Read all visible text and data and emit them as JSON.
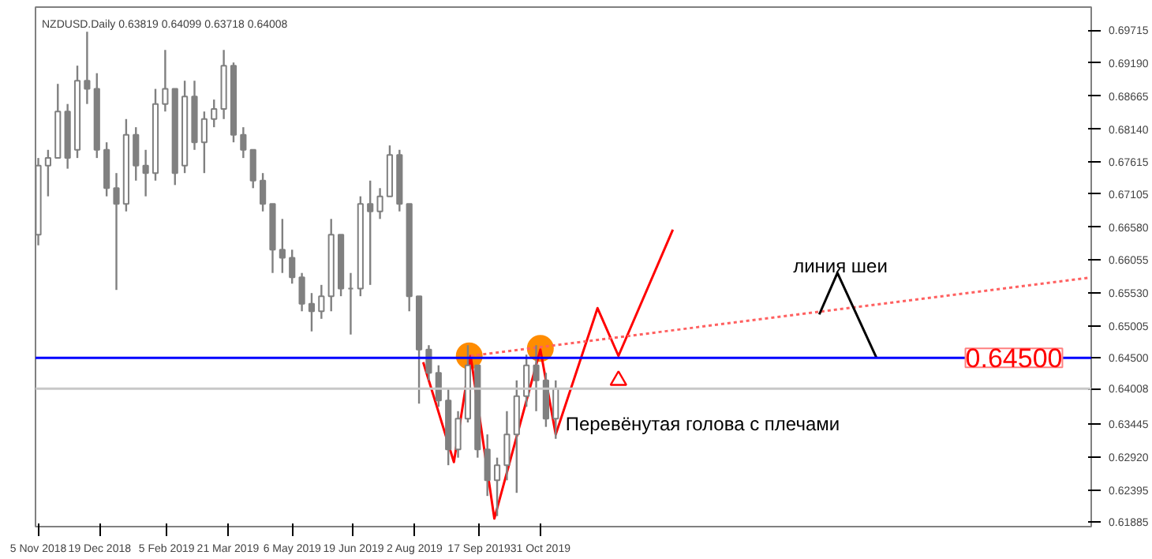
{
  "chart_data": {
    "type": "candlestick",
    "title": "NZDUSD.Daily  0.63819 0.64099 0.63718 0.64008",
    "color": "#808080",
    "x": [
      "2018-11-05",
      "2018-11-12",
      "2018-11-19",
      "2018-11-26",
      "2018-12-03",
      "2018-12-10",
      "2018-12-17",
      "2018-12-24",
      "2018-12-31",
      "2019-01-07",
      "2019-01-14",
      "2019-01-21",
      "2019-01-28",
      "2019-02-04",
      "2019-02-11",
      "2019-02-18",
      "2019-02-25",
      "2019-03-04",
      "2019-03-11",
      "2019-03-18",
      "2019-03-25",
      "2019-04-01",
      "2019-04-08",
      "2019-04-15",
      "2019-04-22",
      "2019-04-29",
      "2019-05-06",
      "2019-05-13",
      "2019-05-20",
      "2019-05-27",
      "2019-06-03",
      "2019-06-10",
      "2019-06-17",
      "2019-06-24",
      "2019-07-01",
      "2019-07-08",
      "2019-07-15",
      "2019-07-22",
      "2019-07-29",
      "2019-08-05",
      "2019-08-12",
      "2019-08-19",
      "2019-08-26",
      "2019-09-02",
      "2019-09-09",
      "2019-09-16",
      "2019-09-23",
      "2019-09-30",
      "2019-10-07",
      "2019-10-14",
      "2019-10-21",
      "2019-10-28",
      "2019-11-04",
      "2019-11-11"
    ],
    "ohlc": [
      [
        0.6646,
        0.6768,
        0.6629,
        0.6756
      ],
      [
        0.6756,
        0.6781,
        0.6707,
        0.6768
      ],
      [
        0.6768,
        0.6886,
        0.6768,
        0.6842
      ],
      [
        0.6842,
        0.6854,
        0.6751,
        0.6768
      ],
      [
        0.6781,
        0.6915,
        0.6768,
        0.6891
      ],
      [
        0.6891,
        0.6969,
        0.6854,
        0.6878
      ],
      [
        0.6878,
        0.6903,
        0.6768,
        0.6781
      ],
      [
        0.6781,
        0.6793,
        0.6707,
        0.672
      ],
      [
        0.672,
        0.6744,
        0.6558,
        0.6695
      ],
      [
        0.6695,
        0.683,
        0.6683,
        0.6805
      ],
      [
        0.6805,
        0.6817,
        0.6732,
        0.6756
      ],
      [
        0.6756,
        0.6781,
        0.6707,
        0.6744
      ],
      [
        0.6744,
        0.6878,
        0.6732,
        0.6854
      ],
      [
        0.6854,
        0.694,
        0.6842,
        0.6878
      ],
      [
        0.6878,
        0.6878,
        0.6725,
        0.6744
      ],
      [
        0.6756,
        0.6891,
        0.6744,
        0.6866
      ],
      [
        0.6866,
        0.6891,
        0.6781,
        0.6793
      ],
      [
        0.6793,
        0.6842,
        0.6744,
        0.683
      ],
      [
        0.683,
        0.6861,
        0.6817,
        0.6846
      ],
      [
        0.6846,
        0.694,
        0.683,
        0.6915
      ],
      [
        0.6915,
        0.692,
        0.6793,
        0.6805
      ],
      [
        0.6805,
        0.6817,
        0.6768,
        0.6781
      ],
      [
        0.6781,
        0.6781,
        0.672,
        0.6732
      ],
      [
        0.6732,
        0.6744,
        0.6683,
        0.6695
      ],
      [
        0.6695,
        0.6695,
        0.6585,
        0.6622
      ],
      [
        0.6622,
        0.6671,
        0.6585,
        0.6609
      ],
      [
        0.6609,
        0.6622,
        0.6568,
        0.6578
      ],
      [
        0.6578,
        0.6585,
        0.6524,
        0.6536
      ],
      [
        0.6536,
        0.6553,
        0.6492,
        0.6524
      ],
      [
        0.6524,
        0.6566,
        0.6512,
        0.6548
      ],
      [
        0.6548,
        0.6671,
        0.6524,
        0.6646
      ],
      [
        0.6646,
        0.6646,
        0.6548,
        0.656
      ],
      [
        0.656,
        0.6585,
        0.6487,
        0.656
      ],
      [
        0.656,
        0.6707,
        0.6548,
        0.6695
      ],
      [
        0.6695,
        0.6732,
        0.6566,
        0.6683
      ],
      [
        0.6683,
        0.672,
        0.6671,
        0.6707
      ],
      [
        0.6707,
        0.6788,
        0.6707,
        0.6773
      ],
      [
        0.6773,
        0.6781,
        0.6683,
        0.6695
      ],
      [
        0.6695,
        0.6695,
        0.6524,
        0.6548
      ],
      [
        0.6548,
        0.6548,
        0.6377,
        0.6463
      ],
      [
        0.6463,
        0.647,
        0.6414,
        0.6426
      ],
      [
        0.6426,
        0.6438,
        0.6372,
        0.6382
      ],
      [
        0.6382,
        0.6401,
        0.6279,
        0.6304
      ],
      [
        0.6304,
        0.6365,
        0.6291,
        0.6353
      ],
      [
        0.6353,
        0.647,
        0.6347,
        0.6438
      ],
      [
        0.6438,
        0.6438,
        0.6291,
        0.6304
      ],
      [
        0.6304,
        0.6328,
        0.623,
        0.6255
      ],
      [
        0.6255,
        0.6291,
        0.6198,
        0.6279
      ],
      [
        0.6279,
        0.6365,
        0.6255,
        0.6328
      ],
      [
        0.6328,
        0.6414,
        0.6235,
        0.6389
      ],
      [
        0.6389,
        0.6455,
        0.6372,
        0.6438
      ],
      [
        0.6438,
        0.647,
        0.6365,
        0.6414
      ],
      [
        0.6414,
        0.6426,
        0.634,
        0.6353
      ],
      [
        0.6353,
        0.6414,
        0.6321,
        0.64008
      ]
    ],
    "series": [
      {
        "type": "line",
        "color": "#ff0000",
        "line_style": "solid",
        "x": [
          "2019-08-08",
          "2019-08-30",
          "2019-09-11",
          "2019-09-28",
          "2019-10-31",
          "2019-11-11",
          "2019-12-11",
          "2019-12-26",
          "2020-02-03"
        ],
        "values": [
          0.6443,
          0.6284,
          0.6453,
          0.6194,
          0.6463,
          0.6328,
          0.6529,
          0.6453,
          0.6654
        ]
      },
      {
        "type": "line",
        "color": "#ff6060",
        "line_style": "dotted",
        "x": [
          "2019-09-11",
          "2020-11-29"
        ],
        "values": [
          0.6453,
          0.6578
        ]
      },
      {
        "type": "line",
        "color": "#000000",
        "line_style": "solid",
        "x": [
          "2020-05-18",
          "2020-05-31",
          "2020-06-28"
        ],
        "values": [
          0.6519,
          0.6585,
          0.645
        ]
      },
      {
        "type": "scatter",
        "color": "#ff8c00",
        "marker": "circle",
        "x": [
          "2019-09-10",
          "2019-10-31"
        ],
        "values": [
          0.6453,
          0.6465
        ]
      },
      {
        "type": "scatter",
        "color": "#ff0000",
        "marker": "triangle",
        "x": [
          "2019-12-26"
        ],
        "values": [
          0.6414
        ]
      }
    ],
    "annotations": [
      "линия шеи",
      {
        "text": "Перевёнутая голова с плечами",
        "x": "2019-11-18",
        "y": 0.6345
      },
      "0.64500"
    ],
    "ref_lines": [
      {
        "axis": "y",
        "value": 0.645,
        "label": "0.64500",
        "color": "#0000ff",
        "line_style": "solid"
      },
      {
        "axis": "y",
        "value": 0.64008,
        "label": "0.64008",
        "color": "#c8c8c8",
        "line_style": "solid"
      }
    ],
    "xlim": [
      "2018-11-03",
      "2020-11-29"
    ],
    "xticks": [
      {
        "value": "2018-11-05",
        "label": "5 Nov 2018"
      },
      {
        "value": "2018-12-19",
        "label": "19 Dec 2018"
      },
      {
        "value": "2019-02-05",
        "label": "5 Feb 2019"
      },
      {
        "value": "2019-03-21",
        "label": "21 Mar 2019"
      },
      {
        "value": "2019-05-06",
        "label": "6 May 2019"
      },
      {
        "value": "2019-06-19",
        "label": "19 Jun 2019"
      },
      {
        "value": "2019-08-02",
        "label": "2 Aug 2019"
      },
      {
        "value": "2019-09-17",
        "label": "17 Sep 2019"
      },
      {
        "value": "2019-10-31",
        "label": "31 Oct 2019"
      }
    ],
    "ylim": [
      0.61812,
      0.70082
    ],
    "yticks": [
      {
        "value": 0.69715,
        "label": "0.69715"
      },
      {
        "value": 0.6919,
        "label": "0.69190"
      },
      {
        "value": 0.68665,
        "label": "0.68665"
      },
      {
        "value": 0.6814,
        "label": "0.68140"
      },
      {
        "value": 0.67615,
        "label": "0.67615"
      },
      {
        "value": 0.67105,
        "label": "0.67105"
      },
      {
        "value": 0.6658,
        "label": "0.66580"
      },
      {
        "value": 0.66055,
        "label": "0.66055"
      },
      {
        "value": 0.6553,
        "label": "0.65530"
      },
      {
        "value": 0.65005,
        "label": "0.65005"
      },
      {
        "value": 0.63445,
        "label": "0.63445"
      },
      {
        "value": 0.6292,
        "label": "0.62920"
      },
      {
        "value": 0.62395,
        "label": "0.62395"
      },
      {
        "value": 0.61885,
        "label": "0.61885"
      }
    ]
  }
}
